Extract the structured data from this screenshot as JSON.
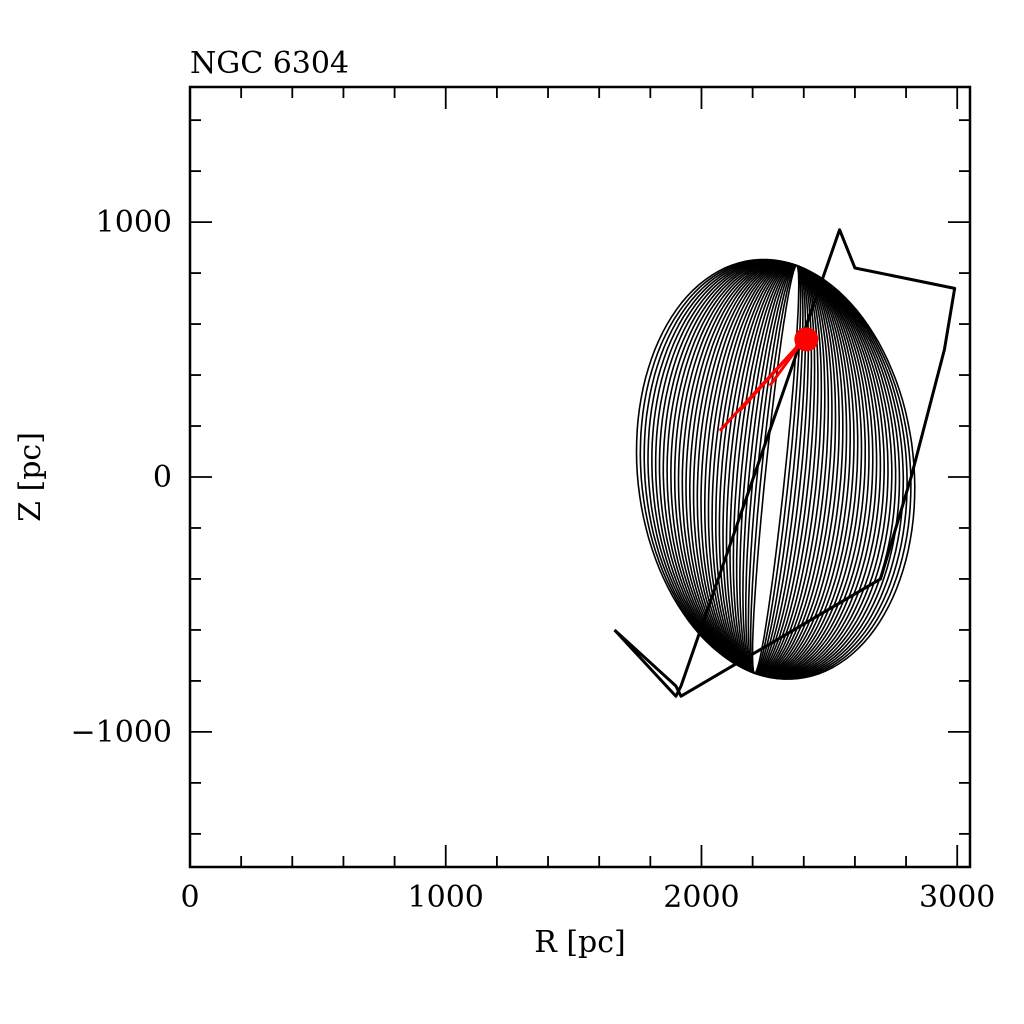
{
  "chart_data": {
    "type": "line",
    "title": "NGC 6304",
    "xlabel": "R [pc]",
    "ylabel": "Z [pc]",
    "xlim": [
      0,
      3050
    ],
    "ylim": [
      -1530,
      1530
    ],
    "x_major_ticks": [
      0,
      1000,
      2000,
      3000
    ],
    "x_tick_labels": [
      "0",
      "1000",
      "2000",
      "3000"
    ],
    "y_major_ticks": [
      -1000,
      0,
      1000
    ],
    "y_tick_labels": [
      "−1000",
      "0",
      "1000"
    ],
    "x_minor_step": 200,
    "y_minor_step": 200,
    "grid": false,
    "legend": "none",
    "series": [
      {
        "kind": "orbit",
        "color": "#000000",
        "x": [
          1660,
          1900,
          1920,
          2540,
          2600,
          2990,
          2950,
          2820,
          2700,
          1920,
          1900,
          1660
        ],
        "y": [
          -600,
          -860,
          -820,
          970,
          820,
          740,
          500,
          0,
          -400,
          -860,
          -820,
          -600
        ]
      },
      {
        "kind": "recent-track",
        "color": "#ff0000",
        "x": [
          2400,
          2150
        ],
        "y": [
          540,
          260
        ]
      },
      {
        "kind": "current-position",
        "color": "#ff0000",
        "x": [
          2410
        ],
        "y": [
          540
        ]
      }
    ]
  }
}
